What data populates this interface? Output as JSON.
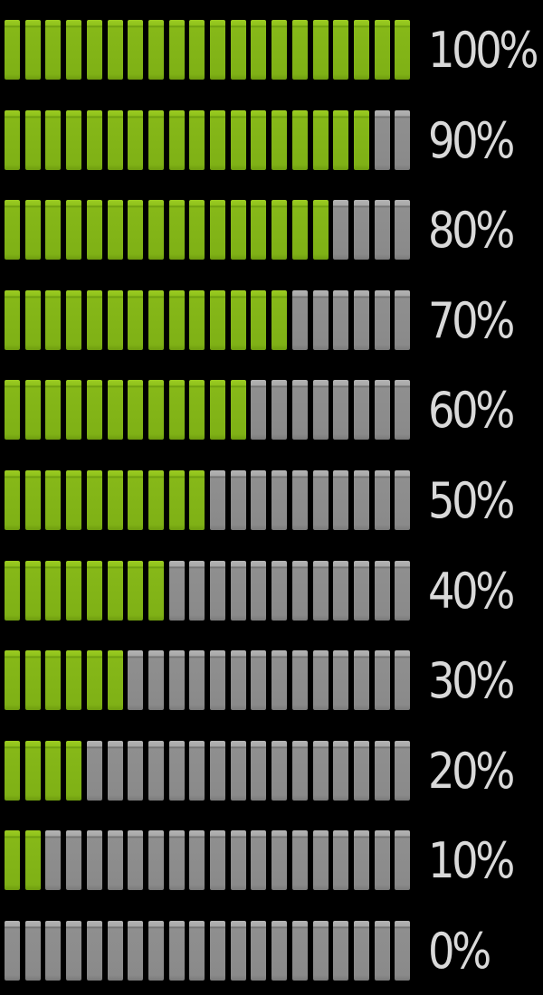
{
  "segments_per_bar": 20,
  "colors": {
    "background": "#000000",
    "filled": "#8fc11c",
    "empty": "#9a9a9a",
    "label": "#d9d9d9"
  },
  "meters": [
    {
      "label": "100%",
      "value": 100
    },
    {
      "label": "90%",
      "value": 90
    },
    {
      "label": "80%",
      "value": 80
    },
    {
      "label": "70%",
      "value": 70
    },
    {
      "label": "60%",
      "value": 60
    },
    {
      "label": "50%",
      "value": 50
    },
    {
      "label": "40%",
      "value": 40
    },
    {
      "label": "30%",
      "value": 30
    },
    {
      "label": "20%",
      "value": 20
    },
    {
      "label": "10%",
      "value": 10
    },
    {
      "label": "0%",
      "value": 0
    }
  ]
}
